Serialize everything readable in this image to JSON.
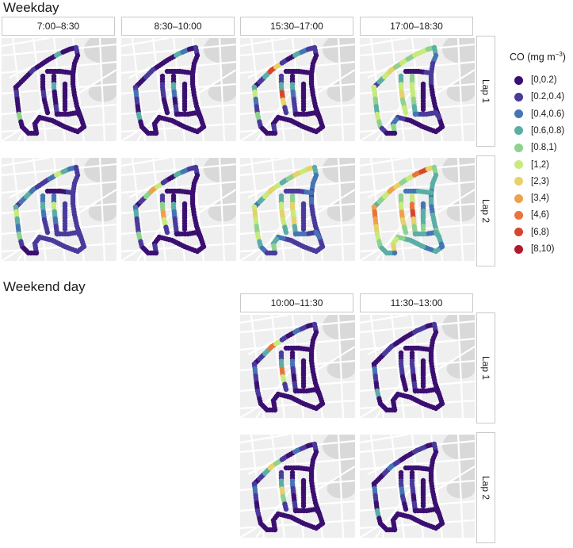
{
  "weekday": {
    "title": "Weekday",
    "columns": [
      "7:00–8:30",
      "8:30–10:00",
      "15:30–17:00",
      "17:00–18:30"
    ],
    "rows": [
      "Lap 1",
      "Lap 2"
    ]
  },
  "weekend": {
    "title": "Weekend day",
    "columns": [
      "10:00–11:30",
      "11:30–13:00"
    ],
    "rows": [
      "Lap 1",
      "Lap 2"
    ]
  },
  "legend": {
    "title_prefix": "CO (mg m",
    "title_sup": "−3",
    "title_suffix": ")",
    "items": [
      {
        "label": "[0,0.2)",
        "color": "#3b0f70"
      },
      {
        "label": "[0.2,0.4)",
        "color": "#4a3a9c"
      },
      {
        "label": "[0.4,0.6)",
        "color": "#4575b4"
      },
      {
        "label": "[0.6,0.8)",
        "color": "#5aaea6"
      },
      {
        "label": "[0.8,1)",
        "color": "#8fd18e"
      },
      {
        "label": "[1,2)",
        "color": "#c7ea7c"
      },
      {
        "label": "[2,3)",
        "color": "#e6d16a"
      },
      {
        "label": "[3,4)",
        "color": "#f0a04b"
      },
      {
        "label": "[4,6)",
        "color": "#e8743b"
      },
      {
        "label": "[6,8)",
        "color": "#d7452f"
      },
      {
        "label": "[8,10)",
        "color": "#b2182b"
      }
    ]
  },
  "map_colors": {
    "background": "#efefef",
    "road": "#ffffff",
    "river": "#d9d9d9"
  }
}
